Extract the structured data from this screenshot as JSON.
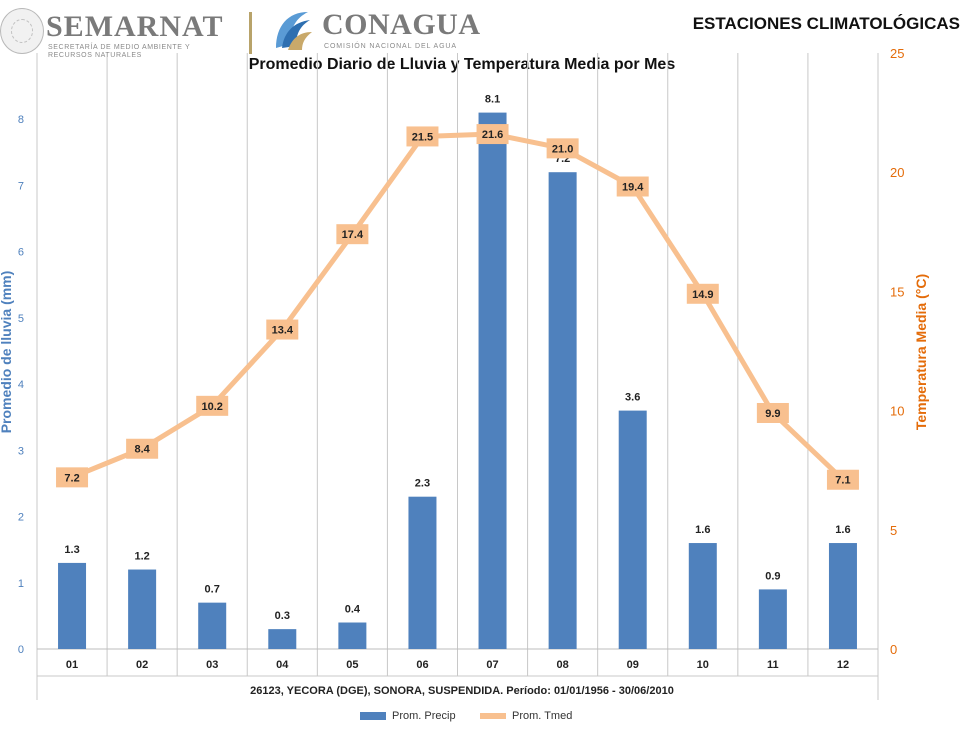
{
  "header": {
    "semarnat_name": "SEMARNAT",
    "semarnat_subtitle": "SECRETARÍA DE MEDIO AMBIENTE Y RECURSOS NATURALES",
    "conagua_name": "CONAGUA",
    "conagua_subtitle": "COMISIÓN NACIONAL DEL AGUA",
    "right_title": "ESTACIONES CLIMATOLÓGICAS"
  },
  "colors": {
    "precip_bar": "#4f81bd",
    "temp_line": "#f8c08f",
    "left_axis_label": "#4f81bd",
    "right_axis_label": "#e46c0a"
  },
  "chart_data": {
    "type": "bar",
    "title": "Promedio Diario de Lluvia y Temperatura Media por Mes",
    "categories": [
      "01",
      "02",
      "03",
      "04",
      "05",
      "06",
      "07",
      "08",
      "09",
      "10",
      "11",
      "12"
    ],
    "series": [
      {
        "name": "Prom. Precip",
        "type": "bar",
        "axis": "left",
        "values": [
          1.3,
          1.2,
          0.7,
          0.3,
          0.4,
          2.3,
          8.1,
          7.2,
          3.6,
          1.6,
          0.9,
          1.6
        ]
      },
      {
        "name": "Prom. Tmed",
        "type": "line",
        "axis": "right",
        "values": [
          7.2,
          8.4,
          10.2,
          13.4,
          17.4,
          21.5,
          21.6,
          21.0,
          19.4,
          14.9,
          9.9,
          7.1
        ]
      }
    ],
    "ylabel": "Promedio de lluvia (mm)",
    "ylim": [
      0,
      9
    ],
    "yticks": [
      0,
      1,
      2,
      3,
      4,
      5,
      6,
      7,
      8
    ],
    "y2label": "Temperatura Media (°C)",
    "y2lim": [
      0,
      25
    ],
    "y2ticks": [
      0,
      5,
      10,
      15,
      20,
      25
    ],
    "xlabel": "26123, YECORA (DGE), SONORA, SUSPENDIDA. Período: 01/01/1956 - 30/06/2010",
    "grid": "vertical",
    "legend": "bottom"
  }
}
